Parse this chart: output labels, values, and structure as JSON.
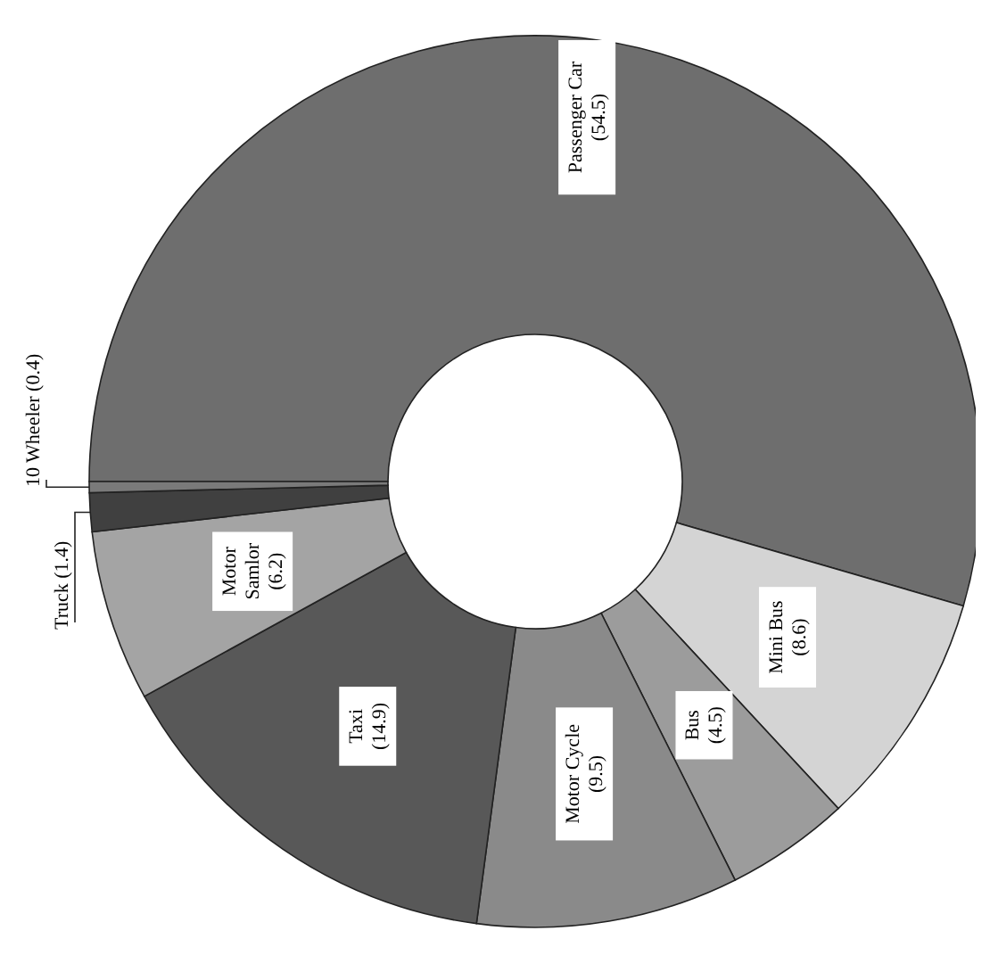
{
  "chart_data": {
    "type": "donut",
    "categories": [
      "Passenger Car",
      "Mini Bus",
      "Bus",
      "Motor Cycle",
      "Taxi",
      "Motor Samlor",
      "Truck",
      "10 Wheeler"
    ],
    "values": [
      54.5,
      8.6,
      4.5,
      9.5,
      14.9,
      6.2,
      1.4,
      0.4
    ],
    "colors": [
      "#6e6e6e",
      "#d4d4d4",
      "#9c9c9c",
      "#8a8a8a",
      "#585858",
      "#a4a4a4",
      "#404040",
      "#7a7a7a"
    ],
    "value_labels": [
      "(54.5)",
      "(8.6)",
      "(4.5)",
      "(9.5)",
      "(14.9)",
      "(6.2)",
      "(1.4)",
      "(0.4)"
    ],
    "legend": false
  }
}
